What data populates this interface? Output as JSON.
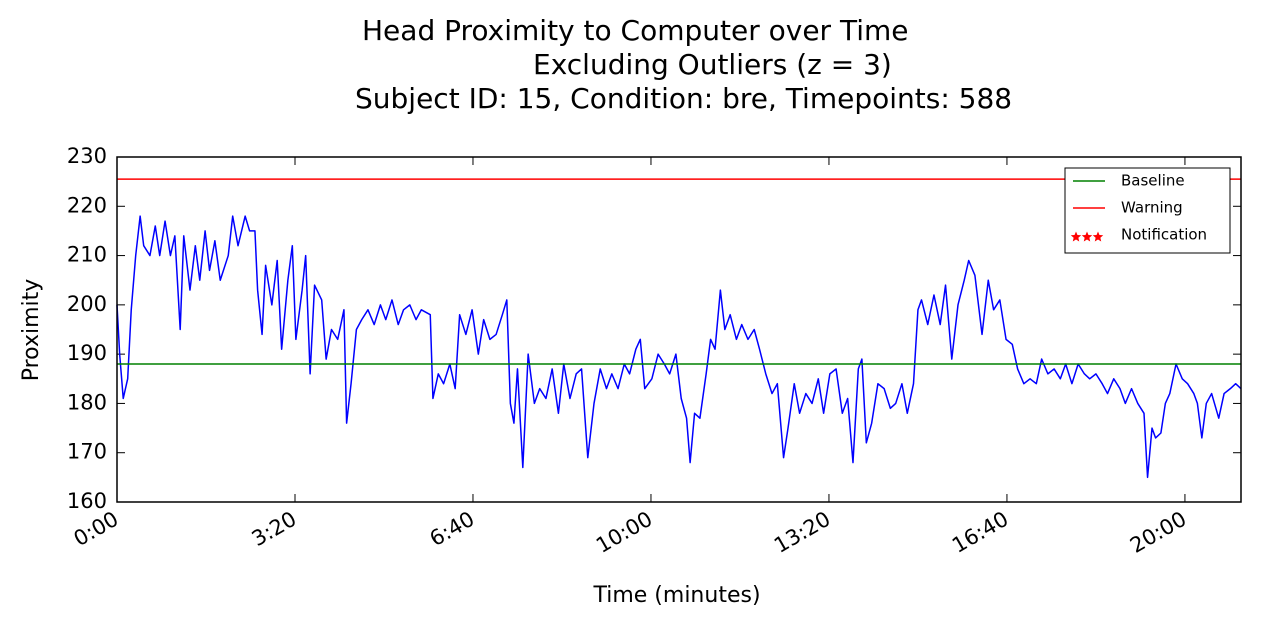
{
  "chart_data": {
    "type": "line",
    "title": [
      "Head Proximity to Computer over Time",
      "Excluding Outliers (z = 3)",
      "Subject ID: 15, Condition: bre, Timepoints: 588"
    ],
    "x_label": "Time (minutes)",
    "y_label": "Proximity",
    "color": "#0000ff",
    "x": [
      0,
      3,
      7,
      12,
      16,
      21,
      26,
      30,
      37,
      43,
      48,
      54,
      60,
      65,
      71,
      75,
      82,
      88,
      93,
      99,
      104,
      110,
      116,
      125,
      130,
      136,
      144,
      149,
      155,
      158,
      163,
      167,
      174,
      180,
      185,
      192,
      197,
      201,
      208,
      212,
      217,
      222,
      230,
      235,
      241,
      248,
      255,
      258,
      263,
      269,
      275,
      282,
      289,
      296,
      302,
      309,
      316,
      322,
      329,
      336,
      342,
      352,
      355,
      361,
      367,
      374,
      380,
      385,
      392,
      399,
      406,
      412,
      419,
      426,
      433,
      438,
      442,
      446,
      450,
      456,
      462,
      469,
      475,
      482,
      489,
      496,
      502,
      509,
      516,
      522,
      529,
      536,
      543,
      550,
      556,
      563,
      570,
      576,
      583,
      588,
      593,
      601,
      608,
      615,
      621,
      628,
      634,
      640,
      644,
      649,
      655,
      662,
      667,
      672,
      678,
      683,
      689,
      696,
      702,
      709,
      716,
      722,
      729,
      736,
      742,
      749,
      754,
      761,
      767,
      774,
      781,
      788,
      794,
      801,
      808,
      815,
      821,
      827,
      833,
      837,
      842,
      848,
      855,
      862,
      869,
      875,
      882,
      888,
      895,
      900,
      904,
      911,
      918,
      925,
      931,
      938,
      945,
      952,
      957,
      964,
      972,
      979,
      985,
      992,
      999,
      1006,
      1012,
      1019,
      1026,
      1033,
      1039,
      1046,
      1053,
      1060,
      1066,
      1073,
      1080,
      1087,
      1093,
      1100,
      1107,
      1113,
      1120,
      1127,
      1133,
      1140,
      1147,
      1154,
      1158,
      1163,
      1167,
      1173,
      1178,
      1183,
      1190,
      1197,
      1203,
      1210,
      1214,
      1219,
      1224,
      1230,
      1238,
      1244,
      1251,
      1257,
      1263
    ],
    "values": [
      200,
      190,
      181,
      185,
      199,
      210,
      218,
      212,
      210,
      216,
      210,
      217,
      210,
      214,
      195,
      214,
      203,
      212,
      205,
      215,
      207,
      213,
      205,
      210,
      218,
      212,
      218,
      215,
      215,
      203,
      194,
      208,
      200,
      209,
      191,
      205,
      212,
      193,
      203,
      210,
      186,
      204,
      201,
      189,
      195,
      193,
      199,
      176,
      184,
      195,
      197,
      199,
      196,
      200,
      197,
      201,
      196,
      199,
      200,
      197,
      199,
      198,
      181,
      186,
      184,
      188,
      183,
      198,
      194,
      199,
      190,
      197,
      193,
      194,
      198,
      201,
      180,
      176,
      187,
      167,
      190,
      180,
      183,
      181,
      187,
      178,
      188,
      181,
      186,
      187,
      169,
      180,
      187,
      183,
      186,
      183,
      188,
      186,
      191,
      193,
      183,
      185,
      190,
      188,
      186,
      190,
      181,
      177,
      168,
      178,
      177,
      186,
      193,
      191,
      203,
      195,
      198,
      193,
      196,
      193,
      195,
      191,
      186,
      182,
      184,
      169,
      175,
      184,
      178,
      182,
      180,
      185,
      178,
      186,
      187,
      178,
      181,
      168,
      187,
      189,
      172,
      176,
      184,
      183,
      179,
      180,
      184,
      178,
      184,
      199,
      201,
      196,
      202,
      196,
      204,
      189,
      200,
      205,
      209,
      206,
      194,
      205,
      199,
      201,
      193,
      192,
      187,
      184,
      185,
      184,
      189,
      186,
      187,
      185,
      188,
      184,
      188,
      186,
      185,
      186,
      184,
      182,
      185,
      183,
      180,
      183,
      180,
      178,
      165,
      175,
      173,
      174,
      180,
      182,
      188,
      185,
      184,
      182,
      180,
      173,
      180,
      182,
      177,
      182,
      183,
      184,
      183
    ],
    "reference_lines": [
      {
        "name": "Baseline",
        "color": "#008000",
        "value": 188
      },
      {
        "name": "Warning",
        "color": "#ff0000",
        "value": 225.5
      }
    ],
    "notifications": {
      "name": "Notification",
      "color": "#ff0000",
      "marker": "star",
      "x": [],
      "values": []
    },
    "xlim": [
      0,
      1263
    ],
    "xticks": [
      {
        "value": 0,
        "label": "0:00"
      },
      {
        "value": 200,
        "label": "3:20"
      },
      {
        "value": 400,
        "label": "6:40"
      },
      {
        "value": 600,
        "label": "10:00"
      },
      {
        "value": 800,
        "label": "13:20"
      },
      {
        "value": 1000,
        "label": "16:40"
      },
      {
        "value": 1200,
        "label": "20:00"
      }
    ],
    "ylim": [
      160,
      230
    ],
    "yticks": [
      160,
      170,
      180,
      190,
      200,
      210,
      220,
      230
    ],
    "grid": false,
    "legend": "upper right"
  }
}
